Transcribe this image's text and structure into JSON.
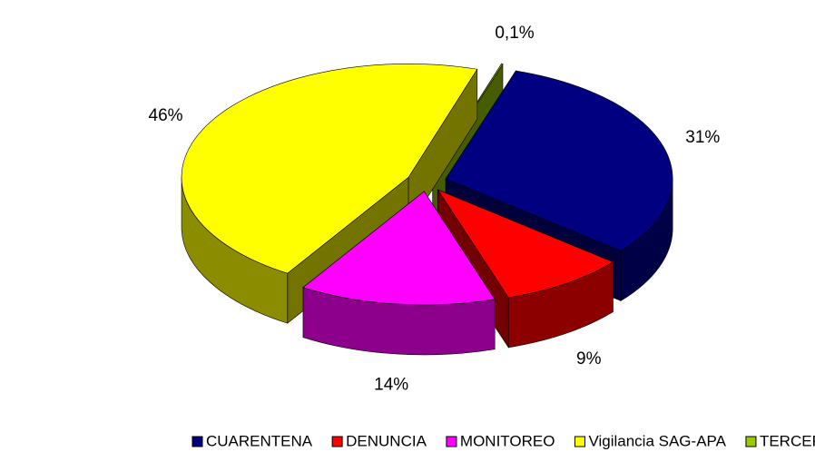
{
  "chart_data": {
    "type": "pie",
    "categories": [
      "CUARENTENA",
      "DENUNCIA",
      "MONITOREO",
      "Vigilancia SAG-APA",
      "TERCEROS"
    ],
    "values": [
      31,
      9,
      14,
      46,
      0.1
    ],
    "value_labels": [
      "31%",
      "9%",
      "14%",
      "46%",
      "0,1%"
    ],
    "colors": [
      "#000080",
      "#ff0000",
      "#ff00ff",
      "#ffff00",
      "#99cc00"
    ],
    "legend": "bottom"
  }
}
